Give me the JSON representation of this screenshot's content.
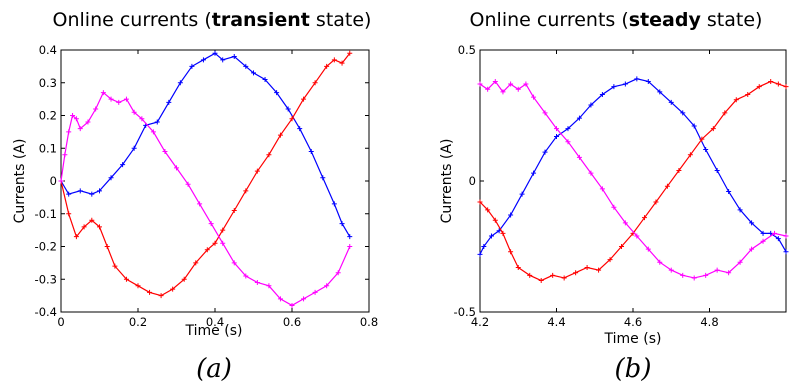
{
  "figure": {
    "captions": [
      "(a)",
      "(b)"
    ]
  },
  "chart_data": [
    {
      "type": "line",
      "title_prefix": "Online currents (",
      "title_bold": "transient",
      "title_suffix": " state)",
      "xlabel": "Time (s)",
      "ylabel": "Currents (A)",
      "xlim": [
        0,
        0.8
      ],
      "ylim": [
        -0.4,
        0.4
      ],
      "x_ticks": [
        "0",
        "0.2",
        "0.4",
        "0.6",
        "0.8"
      ],
      "y_ticks": [
        "-0.4",
        "-0.3",
        "-0.2",
        "-0.1",
        "0",
        "0.1",
        "0.2",
        "0.3",
        "0.4"
      ],
      "grid": false,
      "marker": "+",
      "series": [
        {
          "color": "#0000ff",
          "x": [
            0,
            0.02,
            0.05,
            0.08,
            0.1,
            0.13,
            0.16,
            0.19,
            0.22,
            0.25,
            0.28,
            0.31,
            0.34,
            0.37,
            0.4,
            0.42,
            0.45,
            0.48,
            0.5,
            0.53,
            0.56,
            0.59,
            0.62,
            0.65,
            0.68,
            0.71,
            0.73,
            0.75
          ],
          "y": [
            0,
            -0.04,
            -0.03,
            -0.04,
            -0.03,
            0.01,
            0.05,
            0.1,
            0.17,
            0.18,
            0.24,
            0.3,
            0.35,
            0.37,
            0.39,
            0.37,
            0.38,
            0.35,
            0.33,
            0.31,
            0.27,
            0.22,
            0.16,
            0.09,
            0.01,
            -0.07,
            -0.13,
            -0.17
          ]
        },
        {
          "color": "#ff0000",
          "x": [
            0,
            0.02,
            0.04,
            0.06,
            0.08,
            0.1,
            0.12,
            0.14,
            0.17,
            0.2,
            0.23,
            0.26,
            0.29,
            0.32,
            0.35,
            0.38,
            0.4,
            0.42,
            0.45,
            0.48,
            0.51,
            0.54,
            0.57,
            0.6,
            0.63,
            0.66,
            0.69,
            0.71,
            0.73,
            0.75
          ],
          "y": [
            0,
            -0.1,
            -0.17,
            -0.14,
            -0.12,
            -0.14,
            -0.2,
            -0.26,
            -0.3,
            -0.32,
            -0.34,
            -0.35,
            -0.33,
            -0.3,
            -0.25,
            -0.21,
            -0.19,
            -0.15,
            -0.09,
            -0.03,
            0.03,
            0.08,
            0.14,
            0.19,
            0.25,
            0.3,
            0.35,
            0.37,
            0.36,
            0.39
          ]
        },
        {
          "color": "#ff00ff",
          "x": [
            0,
            0.01,
            0.02,
            0.03,
            0.04,
            0.05,
            0.07,
            0.09,
            0.11,
            0.13,
            0.15,
            0.17,
            0.19,
            0.21,
            0.24,
            0.27,
            0.3,
            0.33,
            0.36,
            0.39,
            0.42,
            0.45,
            0.48,
            0.51,
            0.54,
            0.57,
            0.6,
            0.63,
            0.66,
            0.69,
            0.72,
            0.75
          ],
          "y": [
            0,
            0.08,
            0.15,
            0.2,
            0.19,
            0.16,
            0.18,
            0.22,
            0.27,
            0.25,
            0.24,
            0.25,
            0.21,
            0.19,
            0.15,
            0.09,
            0.04,
            -0.01,
            -0.07,
            -0.13,
            -0.19,
            -0.25,
            -0.29,
            -0.31,
            -0.32,
            -0.36,
            -0.38,
            -0.36,
            -0.34,
            -0.32,
            -0.28,
            -0.2
          ]
        }
      ]
    },
    {
      "type": "line",
      "title_prefix": "Online currents (",
      "title_bold": "steady",
      "title_suffix": " state)",
      "xlabel": "Time (s)",
      "ylabel": "Currents (A)",
      "xlim": [
        4.2,
        5.0
      ],
      "ylim": [
        -0.5,
        0.5
      ],
      "x_ticks": [
        "4.2",
        "4.4",
        "4.6",
        "4.8"
      ],
      "y_ticks": [
        "-0.5",
        "0",
        "0.5"
      ],
      "grid": false,
      "marker": "+",
      "series": [
        {
          "color": "#0000ff",
          "x": [
            4.2,
            4.21,
            4.23,
            4.25,
            4.28,
            4.31,
            4.34,
            4.37,
            4.4,
            4.43,
            4.46,
            4.49,
            4.52,
            4.55,
            4.58,
            4.61,
            4.64,
            4.67,
            4.7,
            4.73,
            4.76,
            4.79,
            4.82,
            4.85,
            4.88,
            4.91,
            4.94,
            4.96,
            4.98,
            5.0
          ],
          "y": [
            -0.28,
            -0.25,
            -0.21,
            -0.19,
            -0.13,
            -0.05,
            0.03,
            0.11,
            0.17,
            0.2,
            0.24,
            0.29,
            0.33,
            0.36,
            0.37,
            0.39,
            0.38,
            0.34,
            0.3,
            0.26,
            0.21,
            0.12,
            0.04,
            -0.04,
            -0.11,
            -0.16,
            -0.2,
            -0.2,
            -0.22,
            -0.27
          ]
        },
        {
          "color": "#ff0000",
          "x": [
            4.2,
            4.22,
            4.24,
            4.26,
            4.28,
            4.3,
            4.33,
            4.36,
            4.39,
            4.42,
            4.45,
            4.48,
            4.51,
            4.54,
            4.57,
            4.6,
            4.63,
            4.66,
            4.69,
            4.72,
            4.75,
            4.78,
            4.81,
            4.84,
            4.87,
            4.9,
            4.93,
            4.96,
            4.98,
            5.0
          ],
          "y": [
            -0.08,
            -0.11,
            -0.15,
            -0.2,
            -0.27,
            -0.33,
            -0.36,
            -0.38,
            -0.36,
            -0.37,
            -0.35,
            -0.33,
            -0.34,
            -0.3,
            -0.25,
            -0.2,
            -0.14,
            -0.08,
            -0.02,
            0.04,
            0.1,
            0.16,
            0.2,
            0.26,
            0.31,
            0.33,
            0.36,
            0.38,
            0.37,
            0.36
          ]
        },
        {
          "color": "#ff00ff",
          "x": [
            4.2,
            4.22,
            4.24,
            4.26,
            4.28,
            4.3,
            4.32,
            4.34,
            4.37,
            4.4,
            4.43,
            4.46,
            4.49,
            4.52,
            4.55,
            4.58,
            4.61,
            4.64,
            4.67,
            4.7,
            4.73,
            4.76,
            4.79,
            4.82,
            4.85,
            4.88,
            4.91,
            4.94,
            4.97,
            5.0
          ],
          "y": [
            0.37,
            0.35,
            0.38,
            0.34,
            0.37,
            0.35,
            0.37,
            0.32,
            0.26,
            0.2,
            0.15,
            0.09,
            0.03,
            -0.03,
            -0.1,
            -0.16,
            -0.21,
            -0.26,
            -0.31,
            -0.34,
            -0.36,
            -0.37,
            -0.36,
            -0.34,
            -0.35,
            -0.31,
            -0.26,
            -0.23,
            -0.2,
            -0.21
          ]
        }
      ]
    }
  ]
}
